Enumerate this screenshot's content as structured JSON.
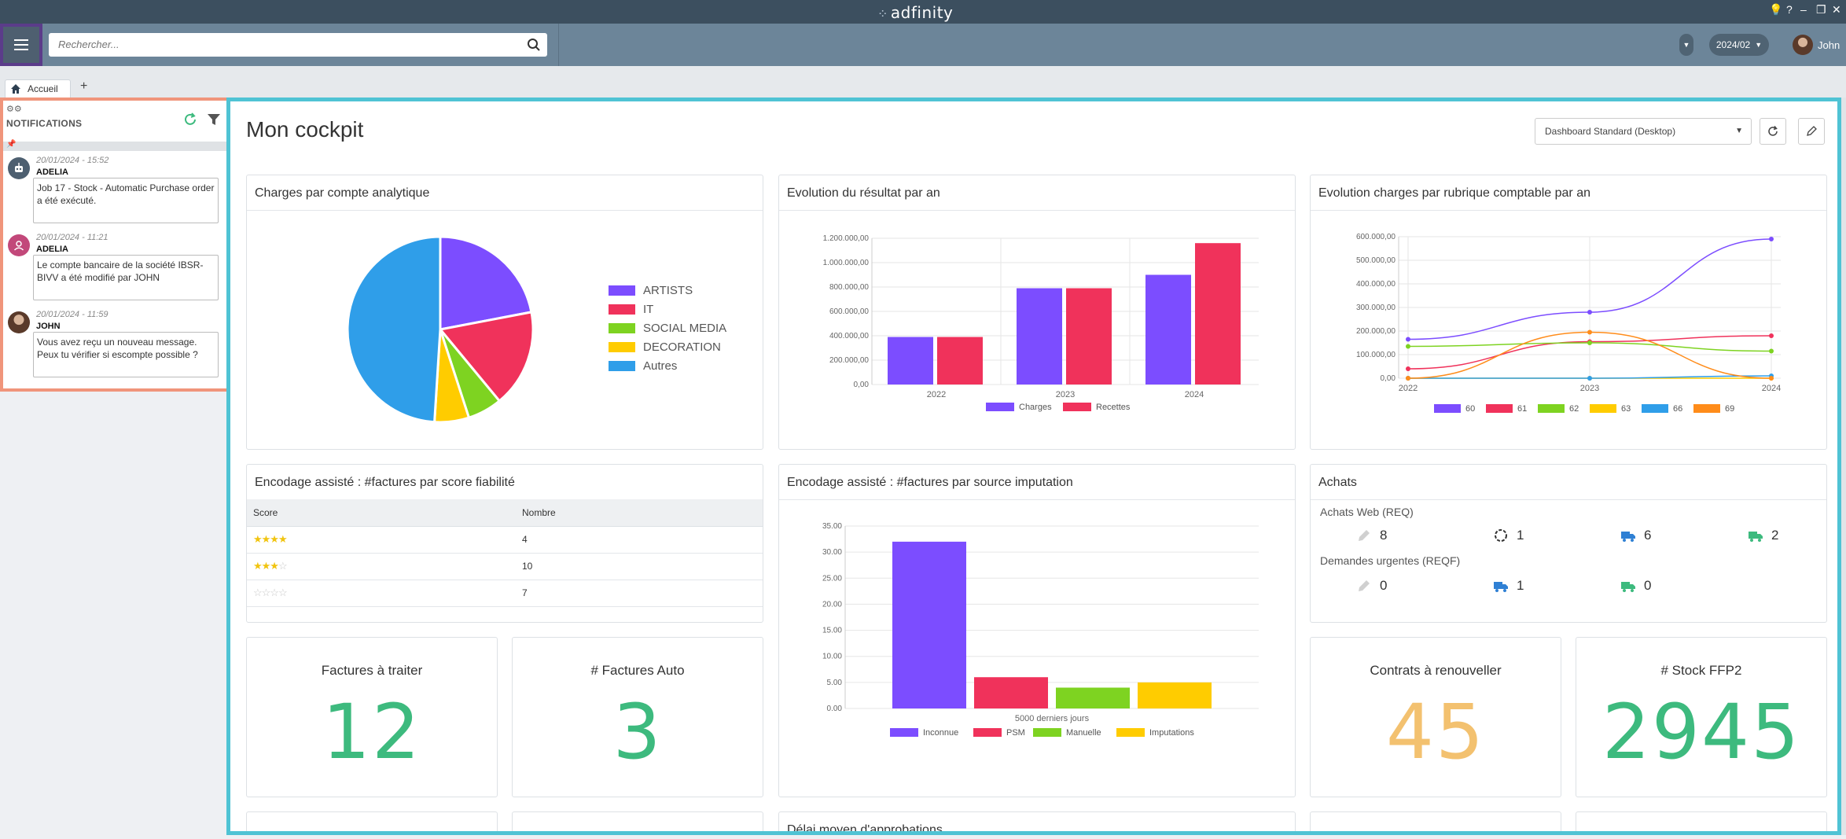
{
  "window": {
    "brand": "adfinity"
  },
  "header": {
    "search_placeholder": "Rechercher...",
    "period": "2024/02",
    "user_name": "John"
  },
  "tabs": [
    {
      "label": "Accueil"
    }
  ],
  "tab_add": "+",
  "notifications": {
    "title": "NOTIFICATIONS",
    "items": [
      {
        "date": "20/01/2024 - 15:52",
        "author": "ADELIA",
        "message": "Job 17 - Stock - Automatic Purchase order a été exécuté.",
        "avatar": "robot-icon",
        "color": "#4d5f70"
      },
      {
        "date": "20/01/2024 - 11:21",
        "author": "ADELIA",
        "message": "Le compte bancaire de la société IBSR-BIVV a été modifié par JOHN",
        "avatar": "user-icon",
        "color": "#c2487a"
      },
      {
        "date": "20/01/2024 - 11:59",
        "author": "JOHN",
        "message": "Vous avez reçu un nouveau message. Peux tu vérifier si escompte possible ?",
        "avatar": "photo-avatar",
        "color": "#5a3a2a"
      }
    ]
  },
  "cockpit": {
    "title": "Mon cockpit",
    "dashboard_select": "Dashboard Standard (Desktop)"
  },
  "cards": {
    "pie": {
      "title": "Charges par compte analytique"
    },
    "result": {
      "title": "Evolution du résultat par an"
    },
    "rubrique": {
      "title": "Evolution charges par rubrique comptable par an"
    },
    "score": {
      "title": "Encodage assisté : #factures par score fiabilité",
      "col_score": "Score",
      "col_nombre": "Nombre",
      "rows": [
        {
          "stars": 4,
          "nombre": "4"
        },
        {
          "stars": 3,
          "nombre": "10"
        },
        {
          "stars": 0,
          "nombre": "7"
        }
      ]
    },
    "source": {
      "title": "Encodage assisté : #factures par source imputation"
    },
    "achats": {
      "title": "Achats",
      "web_label": "Achats Web (REQ)",
      "web_values": [
        "8",
        "1",
        "6",
        "2"
      ],
      "urg_label": "Demandes urgentes (REQF)",
      "urg_values": [
        "0",
        "1",
        "0"
      ]
    },
    "kpi1": {
      "title": "Factures à traiter",
      "value": "12",
      "color": "#3dba7e"
    },
    "kpi2": {
      "title": "# Factures Auto",
      "value": "3",
      "color": "#3dba7e"
    },
    "kpi3": {
      "title": "Contrats à renouveller",
      "value": "45",
      "color": "#f3c16f"
    },
    "kpi4": {
      "title": "# Stock FFP2",
      "value": "2945",
      "color": "#3dba7e"
    },
    "approb": {
      "title": "Délai moyen d'approbations"
    }
  },
  "chart_data": [
    {
      "type": "pie",
      "title": "Charges par compte analytique",
      "categories": [
        "ARTISTS",
        "IT",
        "SOCIAL MEDIA",
        "DECORATION",
        "Autres"
      ],
      "values": [
        22,
        17,
        6,
        6,
        49
      ],
      "colors": [
        "#7c4dff",
        "#f0325b",
        "#7ed321",
        "#ffcc00",
        "#2f9ee9"
      ],
      "legend": "right"
    },
    {
      "type": "bar",
      "title": "Evolution du résultat par an",
      "categories": [
        "2022",
        "2023",
        "2024"
      ],
      "series": [
        {
          "name": "Charges",
          "values": [
            390000,
            790000,
            900000
          ],
          "color": "#7c4dff"
        },
        {
          "name": "Recettes",
          "values": [
            390000,
            790000,
            1160000
          ],
          "color": "#f0325b"
        }
      ],
      "ylim": [
        0,
        1200000
      ],
      "yticks": [
        "0,00",
        "200.000,00",
        "400.000,00",
        "600.000,00",
        "800.000,00",
        "1.000.000,00",
        "1.200.000,00"
      ],
      "legend": "bottom",
      "grid": true
    },
    {
      "type": "line",
      "title": "Evolution charges par rubrique comptable par an",
      "x": [
        "2022",
        "2023",
        "2024"
      ],
      "series": [
        {
          "name": "60",
          "values": [
            165000,
            280000,
            590000
          ],
          "color": "#7c4dff"
        },
        {
          "name": "61",
          "values": [
            40000,
            155000,
            180000
          ],
          "color": "#f0325b"
        },
        {
          "name": "62",
          "values": [
            135000,
            150000,
            115000
          ],
          "color": "#7ed321"
        },
        {
          "name": "63",
          "values": [
            0,
            0,
            0
          ],
          "color": "#ffcc00"
        },
        {
          "name": "66",
          "values": [
            0,
            0,
            10000
          ],
          "color": "#2f9ee9"
        },
        {
          "name": "69",
          "values": [
            0,
            195000,
            0
          ],
          "color": "#ff8c1a"
        }
      ],
      "ylim": [
        0,
        600000
      ],
      "yticks": [
        "0,00",
        "100.000,00",
        "200.000,00",
        "300.000,00",
        "400.000,00",
        "500.000,00",
        "600.000,00"
      ],
      "legend": "bottom",
      "grid": true
    },
    {
      "type": "bar",
      "title": "Encodage assisté : #factures par source imputation",
      "categories": [
        "5000 derniers jours"
      ],
      "series": [
        {
          "name": "Inconnue",
          "values": [
            32
          ],
          "color": "#7c4dff"
        },
        {
          "name": "PSM",
          "values": [
            6
          ],
          "color": "#f0325b"
        },
        {
          "name": "Manuelle",
          "values": [
            4
          ],
          "color": "#7ed321"
        },
        {
          "name": "Imputations",
          "values": [
            5
          ],
          "color": "#ffcc00"
        }
      ],
      "ylim": [
        0,
        35
      ],
      "yticks": [
        "0.00",
        "5.00",
        "10.00",
        "15.00",
        "20.00",
        "25.00",
        "30.00",
        "35.00"
      ],
      "legend": "bottom",
      "grid": true
    }
  ]
}
